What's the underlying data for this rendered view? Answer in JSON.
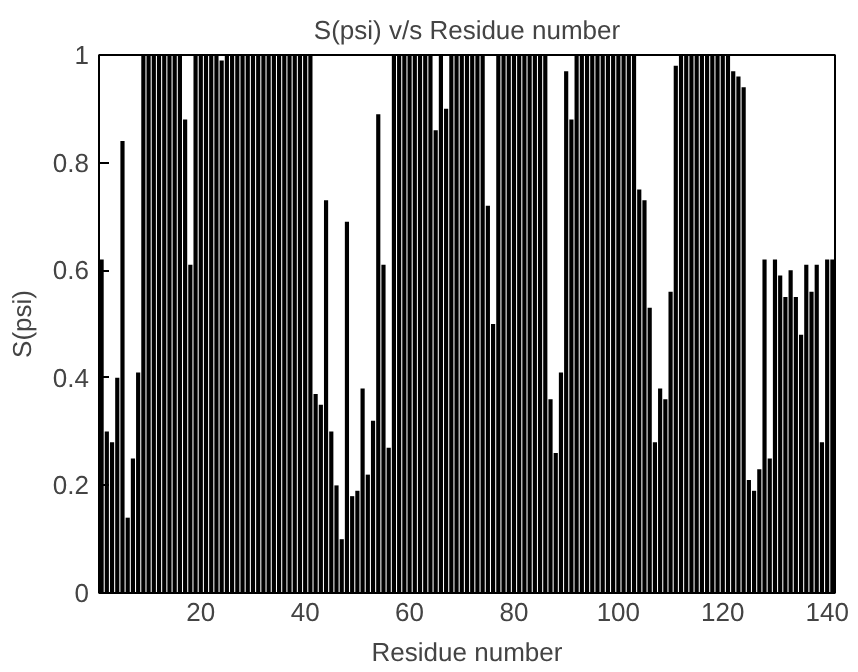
{
  "chart_data": {
    "type": "bar",
    "title": "S(psi) v/s Residue number",
    "xlabel": "Residue number",
    "ylabel": "S(psi)",
    "x": [
      1,
      2,
      3,
      4,
      5,
      6,
      7,
      8,
      9,
      10,
      11,
      12,
      13,
      14,
      15,
      16,
      17,
      18,
      19,
      20,
      21,
      22,
      23,
      24,
      25,
      26,
      27,
      28,
      29,
      30,
      31,
      32,
      33,
      34,
      35,
      36,
      37,
      38,
      39,
      40,
      41,
      42,
      43,
      44,
      45,
      46,
      47,
      48,
      49,
      50,
      51,
      52,
      53,
      54,
      55,
      56,
      57,
      58,
      59,
      60,
      61,
      62,
      63,
      64,
      65,
      66,
      67,
      68,
      69,
      70,
      71,
      72,
      73,
      74,
      75,
      76,
      77,
      78,
      79,
      80,
      81,
      82,
      83,
      84,
      85,
      86,
      87,
      88,
      89,
      90,
      91,
      92,
      93,
      94,
      95,
      96,
      97,
      98,
      99,
      100,
      101,
      102,
      103,
      104,
      105,
      106,
      107,
      108,
      109,
      110,
      111,
      112,
      113,
      114,
      115,
      116,
      117,
      118,
      119,
      120,
      121,
      122,
      123,
      124,
      125,
      126,
      127,
      128,
      129,
      130,
      131,
      132,
      133,
      134,
      135,
      136,
      137,
      138,
      139,
      140,
      141
    ],
    "values": [
      0.62,
      0.3,
      0.28,
      0.4,
      0.84,
      0.14,
      0.25,
      0.41,
      1,
      1,
      1,
      1,
      1,
      1,
      1,
      1,
      0.88,
      0.61,
      1,
      1,
      1,
      1,
      1,
      0.99,
      1,
      1,
      1,
      1,
      1,
      1,
      1,
      1,
      1,
      1,
      1,
      1,
      1,
      1,
      1,
      1,
      1,
      0.37,
      0.35,
      0.73,
      0.3,
      0.2,
      0.1,
      0.69,
      0.18,
      0.19,
      0.38,
      0.22,
      0.32,
      0.89,
      0.61,
      0.27,
      1,
      1,
      1,
      1,
      1,
      1,
      1,
      1,
      0.86,
      1,
      0.9,
      1,
      1,
      1,
      1,
      1,
      1,
      1,
      0.72,
      0.5,
      1,
      1,
      1,
      1,
      1,
      1,
      1,
      1,
      1,
      1,
      0.36,
      0.26,
      0.41,
      0.97,
      0.88,
      1,
      1,
      1,
      1,
      1,
      1,
      1,
      1,
      1,
      1,
      1,
      1,
      0.75,
      0.73,
      0.53,
      0.28,
      0.38,
      0.36,
      0.56,
      0.98,
      1,
      1,
      1,
      1,
      1,
      1,
      1,
      1,
      1,
      1,
      0.97,
      0.96,
      0.94,
      0.21,
      0.19,
      0.23,
      0.62,
      0.25,
      0.62,
      0.59,
      0.55,
      0.6,
      0.55,
      0.48,
      0.61,
      0.56,
      0.61,
      0.28,
      0.62,
      0.62
    ],
    "color": "#000000",
    "xlim": [
      0.5,
      141.5
    ],
    "xticks": [
      20,
      40,
      60,
      80,
      100,
      120,
      140
    ],
    "ylim": [
      0,
      1
    ],
    "yticks": [
      0,
      0.2,
      0.4,
      0.6,
      0.8,
      1
    ],
    "grid": false
  }
}
